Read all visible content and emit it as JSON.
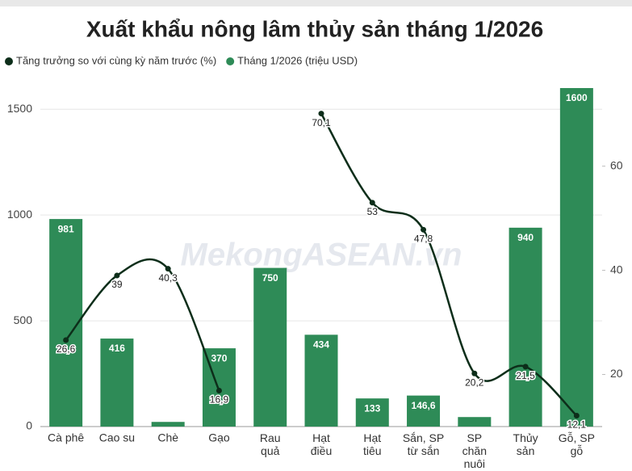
{
  "chart_data": {
    "type": "bar_line",
    "title": "Xuất khẩu nông lâm thủy sản tháng 1/2026",
    "watermark": "MekongASEAN.vn",
    "categories": [
      "Cà phê",
      "Cao su",
      "Chè",
      "Gạo",
      "Rau\nquả",
      "Hạt\nđiều",
      "Hạt\ntiêu",
      "Sắn, SP\ntừ sắn",
      "SP\nchăn\nnuôi",
      "Thủy\nsản",
      "Gỗ, SP\ngỗ"
    ],
    "series": [
      {
        "name": "Tháng 1/2026 (triệu USD)",
        "type": "bar",
        "color": "#2e8b57",
        "values": [
          981,
          416,
          22,
          370,
          750,
          434,
          133,
          146.6,
          45,
          940,
          1600
        ],
        "value_labels": [
          "981",
          "416",
          null,
          "370",
          "750",
          "434",
          "133",
          "146,6",
          null,
          "940",
          "1600"
        ]
      },
      {
        "name": "Tăng trưởng so với cùng kỳ năm trước (%)",
        "type": "line",
        "axis": "y2",
        "color": "#0d2e1a",
        "values": [
          26.6,
          39,
          40.3,
          16.9,
          null,
          70.1,
          53,
          47.8,
          20.2,
          21.5,
          12.1
        ],
        "value_labels": [
          "26,6",
          "39",
          "40,3",
          "16,9",
          null,
          "70,1",
          "53",
          "47,8",
          "20,2",
          "21,5",
          "12,1"
        ]
      }
    ],
    "legend_order": [
      1,
      0
    ],
    "ylim": [
      0,
      1600
    ],
    "yticks": [
      0,
      500,
      1000,
      1500
    ],
    "y2lim": [
      10,
      75
    ],
    "y2ticks": [
      20,
      40,
      60
    ],
    "grid": true
  }
}
